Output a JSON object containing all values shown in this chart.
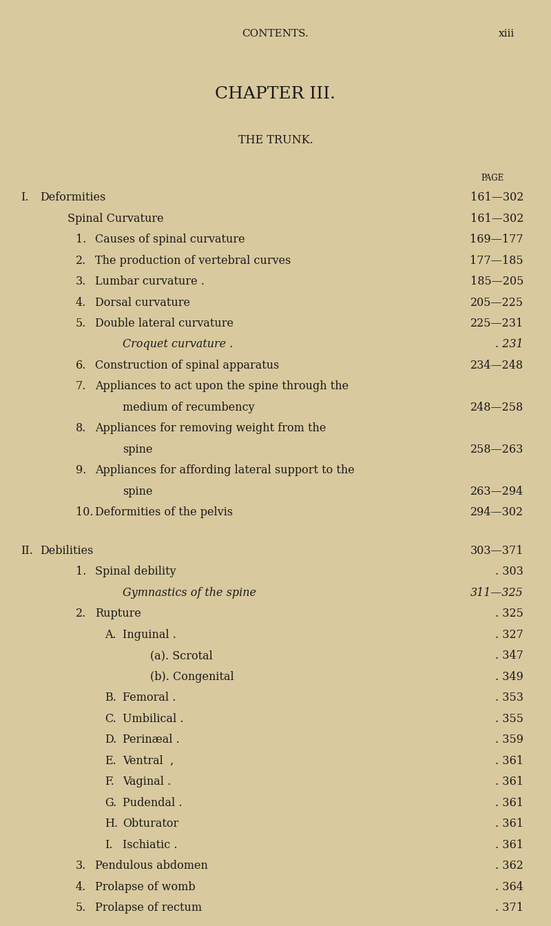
{
  "bg_color": "#d9c99e",
  "text_color": "#1a1a1a",
  "header_top": "CONTENTS.",
  "header_page": "xiii",
  "chapter_title": "CHAPTER III.",
  "chapter_subtitle": "THE TRUNK.",
  "page_label": "PAGE",
  "entries": [
    {
      "indent": 0,
      "prefix": "I.",
      "text": "Deformities",
      "dots": true,
      "page": "161—302",
      "style": "smallcaps"
    },
    {
      "indent": 1,
      "prefix": "",
      "text": "Spinal Curvature",
      "dots": true,
      "page": "161—302",
      "style": "smallcaps"
    },
    {
      "indent": 2,
      "prefix": "1.",
      "text": "Causes of spinal curvature",
      "dots": true,
      "page": "169—177",
      "style": "normal"
    },
    {
      "indent": 2,
      "prefix": "2.",
      "text": "The production of vertebral curves",
      "dots": true,
      "page": "177—185",
      "style": "normal"
    },
    {
      "indent": 2,
      "prefix": "3.",
      "text": "Lumbar curvature .",
      "dots": true,
      "page": "185—205",
      "style": "normal"
    },
    {
      "indent": 2,
      "prefix": "4.",
      "text": "Dorsal curvature",
      "dots": true,
      "page": "205—225",
      "style": "normal"
    },
    {
      "indent": 2,
      "prefix": "5.",
      "text": "Double lateral curvature",
      "dots": true,
      "page": "225—231",
      "style": "normal"
    },
    {
      "indent": 3,
      "prefix": "",
      "text": "Croquet curvature .",
      "dots": true,
      "page": ". 231",
      "style": "italic"
    },
    {
      "indent": 2,
      "prefix": "6.",
      "text": "Construction of spinal apparatus",
      "dots": true,
      "page": "234—248",
      "style": "normal"
    },
    {
      "indent": 2,
      "prefix": "7.",
      "text": "Appliances to act upon the spine through the",
      "dots": false,
      "page": "",
      "style": "normal"
    },
    {
      "indent": 3,
      "prefix": "",
      "text": "medium of recumbency",
      "dots": true,
      "page": "248—258",
      "style": "normal"
    },
    {
      "indent": 2,
      "prefix": "8.",
      "text": "Appliances for removing weight from the",
      "dots": false,
      "page": "",
      "style": "normal"
    },
    {
      "indent": 3,
      "prefix": "",
      "text": "spine",
      "dots": true,
      "page": "258—263",
      "style": "normal"
    },
    {
      "indent": 2,
      "prefix": "9.",
      "text": "Appliances for affording lateral support to the",
      "dots": false,
      "page": "",
      "style": "normal"
    },
    {
      "indent": 3,
      "prefix": "",
      "text": "spine",
      "dots": true,
      "page": "263—294",
      "style": "normal"
    },
    {
      "indent": 2,
      "prefix": "10.",
      "text": "Deformities of the pelvis",
      "dots": true,
      "page": "294—302",
      "style": "normal"
    },
    {
      "indent": -1,
      "prefix": "",
      "text": "",
      "dots": false,
      "page": "",
      "style": "spacer"
    },
    {
      "indent": 0,
      "prefix": "II.",
      "text": "Debilities",
      "dots": true,
      "page": "303—371",
      "style": "smallcaps"
    },
    {
      "indent": 2,
      "prefix": "1.",
      "text": "Spinal debility",
      "dots": true,
      "page": ". 303",
      "style": "normal"
    },
    {
      "indent": 3,
      "prefix": "",
      "text": "Gymnastics of the spine",
      "dots": true,
      "page": "311—325",
      "style": "italic"
    },
    {
      "indent": 2,
      "prefix": "2.",
      "text": "Rupture",
      "dots": true,
      "page": ". 325",
      "style": "normal"
    },
    {
      "indent": 3,
      "prefix": "A.",
      "text": "Inguinal .",
      "dots": true,
      "page": ". 327",
      "style": "normal"
    },
    {
      "indent": 4,
      "prefix": "",
      "text": "(a). Scrotal",
      "dots": true,
      "page": ". 347",
      "style": "normal"
    },
    {
      "indent": 4,
      "prefix": "",
      "text": "(b). Congenital",
      "dots": true,
      "page": ". 349",
      "style": "normal"
    },
    {
      "indent": 3,
      "prefix": "B.",
      "text": "Femoral .",
      "dots": true,
      "page": ". 353",
      "style": "normal"
    },
    {
      "indent": 3,
      "prefix": "C.",
      "text": "Umbilical .",
      "dots": true,
      "page": ". 355",
      "style": "normal"
    },
    {
      "indent": 3,
      "prefix": "D.",
      "text": "Perinæal .",
      "dots": true,
      "page": ". 359",
      "style": "normal"
    },
    {
      "indent": 3,
      "prefix": "E.",
      "text": "Ventral  ,",
      "dots": true,
      "page": ". 361",
      "style": "normal"
    },
    {
      "indent": 3,
      "prefix": "F.",
      "text": "Vaginal .",
      "dots": true,
      "page": ". 361",
      "style": "normal"
    },
    {
      "indent": 3,
      "prefix": "G.",
      "text": "Pudendal .",
      "dots": true,
      "page": ". 361",
      "style": "normal"
    },
    {
      "indent": 3,
      "prefix": "H.",
      "text": "Obturator",
      "dots": true,
      "page": ". 361",
      "style": "normal"
    },
    {
      "indent": 3,
      "prefix": "I.",
      "text": "Ischiatic .",
      "dots": true,
      "page": ". 361",
      "style": "normal"
    },
    {
      "indent": 2,
      "prefix": "3.",
      "text": "Pendulous abdomen",
      "dots": true,
      "page": ". 362",
      "style": "normal"
    },
    {
      "indent": 2,
      "prefix": "4.",
      "text": "Prolapse of womb",
      "dots": true,
      "page": ". 364",
      "style": "normal"
    },
    {
      "indent": 2,
      "prefix": "5.",
      "text": "Prolapse of rectum",
      "dots": true,
      "page": ". 371",
      "style": "normal"
    }
  ]
}
